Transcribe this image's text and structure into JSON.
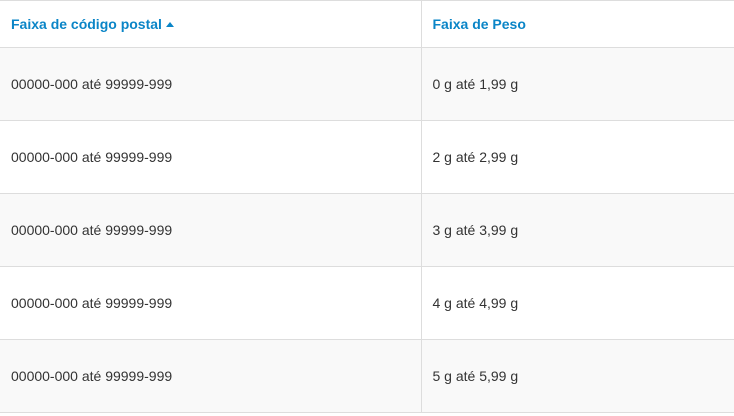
{
  "table": {
    "columns": [
      {
        "label": "Faixa de código postal",
        "sort": "ascending"
      },
      {
        "label": "Faixa de Peso"
      }
    ],
    "rows": [
      [
        "00000-000 até 99999-999",
        "0 g até 1,99 g"
      ],
      [
        "00000-000 até 99999-999",
        "2 g até 2,99 g"
      ],
      [
        "00000-000 até 99999-999",
        "3 g até 3,99 g"
      ],
      [
        "00000-000 até 99999-999",
        "4 g até 4,99 g"
      ],
      [
        "00000-000 até 99999-999",
        "5 g até 5,99 g"
      ]
    ]
  },
  "colors": {
    "header_text": "#0a85c7",
    "stripe": "#f9f9f9",
    "border": "#dddddd"
  }
}
